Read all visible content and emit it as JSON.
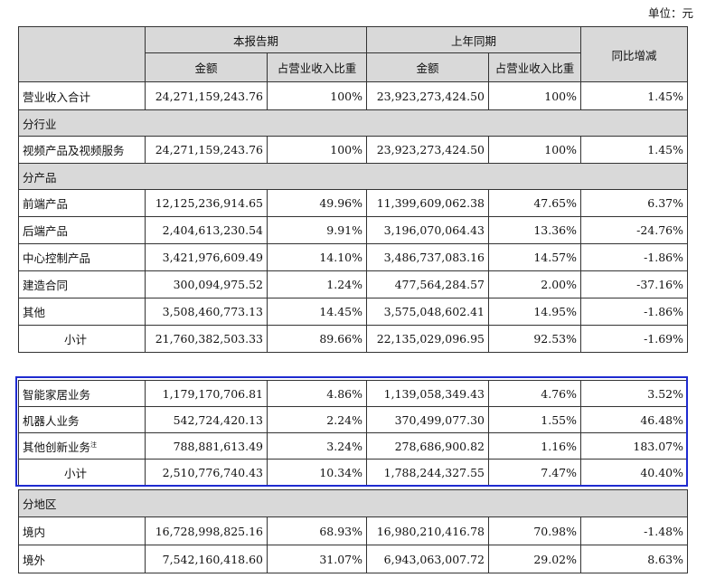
{
  "unit_label": "单位：元",
  "headers": {
    "current_period": "本报告期",
    "prior_period": "上年同期",
    "yoy_change": "同比增减",
    "amount": "金额",
    "revenue_share": "占营业收入比重"
  },
  "total_row": {
    "label": "营业收入合计",
    "cur_amt": "24,271,159,243.76",
    "cur_pct": "100%",
    "prev_amt": "23,923,273,424.50",
    "prev_pct": "100%",
    "yoy": "1.45%"
  },
  "section_industry": "分行业",
  "industry_row": {
    "label": "视频产品及视频服务",
    "cur_amt": "24,271,159,243.76",
    "cur_pct": "100%",
    "prev_amt": "23,923,273,424.50",
    "prev_pct": "100%",
    "yoy": "1.45%"
  },
  "section_product": "分产品",
  "product_rows": [
    {
      "label": "前端产品",
      "cur_amt": "12,125,236,914.65",
      "cur_pct": "49.96%",
      "prev_amt": "11,399,609,062.38",
      "prev_pct": "47.65%",
      "yoy": "6.37%"
    },
    {
      "label": "后端产品",
      "cur_amt": "2,404,613,230.54",
      "cur_pct": "9.91%",
      "prev_amt": "3,196,070,064.43",
      "prev_pct": "13.36%",
      "yoy": "-24.76%"
    },
    {
      "label": "中心控制产品",
      "cur_amt": "3,421,976,609.49",
      "cur_pct": "14.10%",
      "prev_amt": "3,486,737,083.16",
      "prev_pct": "14.57%",
      "yoy": "-1.86%"
    },
    {
      "label": "建造合同",
      "cur_amt": "300,094,975.52",
      "cur_pct": "1.24%",
      "prev_amt": "477,564,284.57",
      "prev_pct": "2.00%",
      "yoy": "-37.16%"
    },
    {
      "label": "其他",
      "cur_amt": "3,508,460,773.13",
      "cur_pct": "14.45%",
      "prev_amt": "3,575,048,602.41",
      "prev_pct": "14.95%",
      "yoy": "-1.86%"
    }
  ],
  "product_subtotal": {
    "label": "小计",
    "cur_amt": "21,760,382,503.33",
    "cur_pct": "89.66%",
    "prev_amt": "22,135,029,096.95",
    "prev_pct": "92.53%",
    "yoy": "-1.69%"
  },
  "innovation_rows": [
    {
      "label": "智能家居业务",
      "cur_amt": "1,179,170,706.81",
      "cur_pct": "4.86%",
      "prev_amt": "1,139,058,349.43",
      "prev_pct": "4.76%",
      "yoy": "3.52%"
    },
    {
      "label": "机器人业务",
      "cur_amt": "542,724,420.13",
      "cur_pct": "2.24%",
      "prev_amt": "370,499,077.30",
      "prev_pct": "1.55%",
      "yoy": "46.48%"
    },
    {
      "label": "其他创新业务",
      "note_mark": "注",
      "cur_amt": "788,881,613.49",
      "cur_pct": "3.24%",
      "prev_amt": "278,686,900.82",
      "prev_pct": "1.16%",
      "yoy": "183.07%"
    }
  ],
  "innovation_subtotal": {
    "label": "小计",
    "cur_amt": "2,510,776,740.43",
    "cur_pct": "10.34%",
    "prev_amt": "1,788,244,327.55",
    "prev_pct": "7.47%",
    "yoy": "40.40%"
  },
  "section_region": "分地区",
  "region_rows": [
    {
      "label": "境内",
      "cur_amt": "16,728,998,825.16",
      "cur_pct": "68.93%",
      "prev_amt": "16,980,210,416.78",
      "prev_pct": "70.98%",
      "yoy": "-1.48%"
    },
    {
      "label": "境外",
      "cur_amt": "7,542,160,418.60",
      "cur_pct": "31.07%",
      "prev_amt": "6,943,063,007.72",
      "prev_pct": "29.02%",
      "yoy": "8.63%"
    }
  ]
}
